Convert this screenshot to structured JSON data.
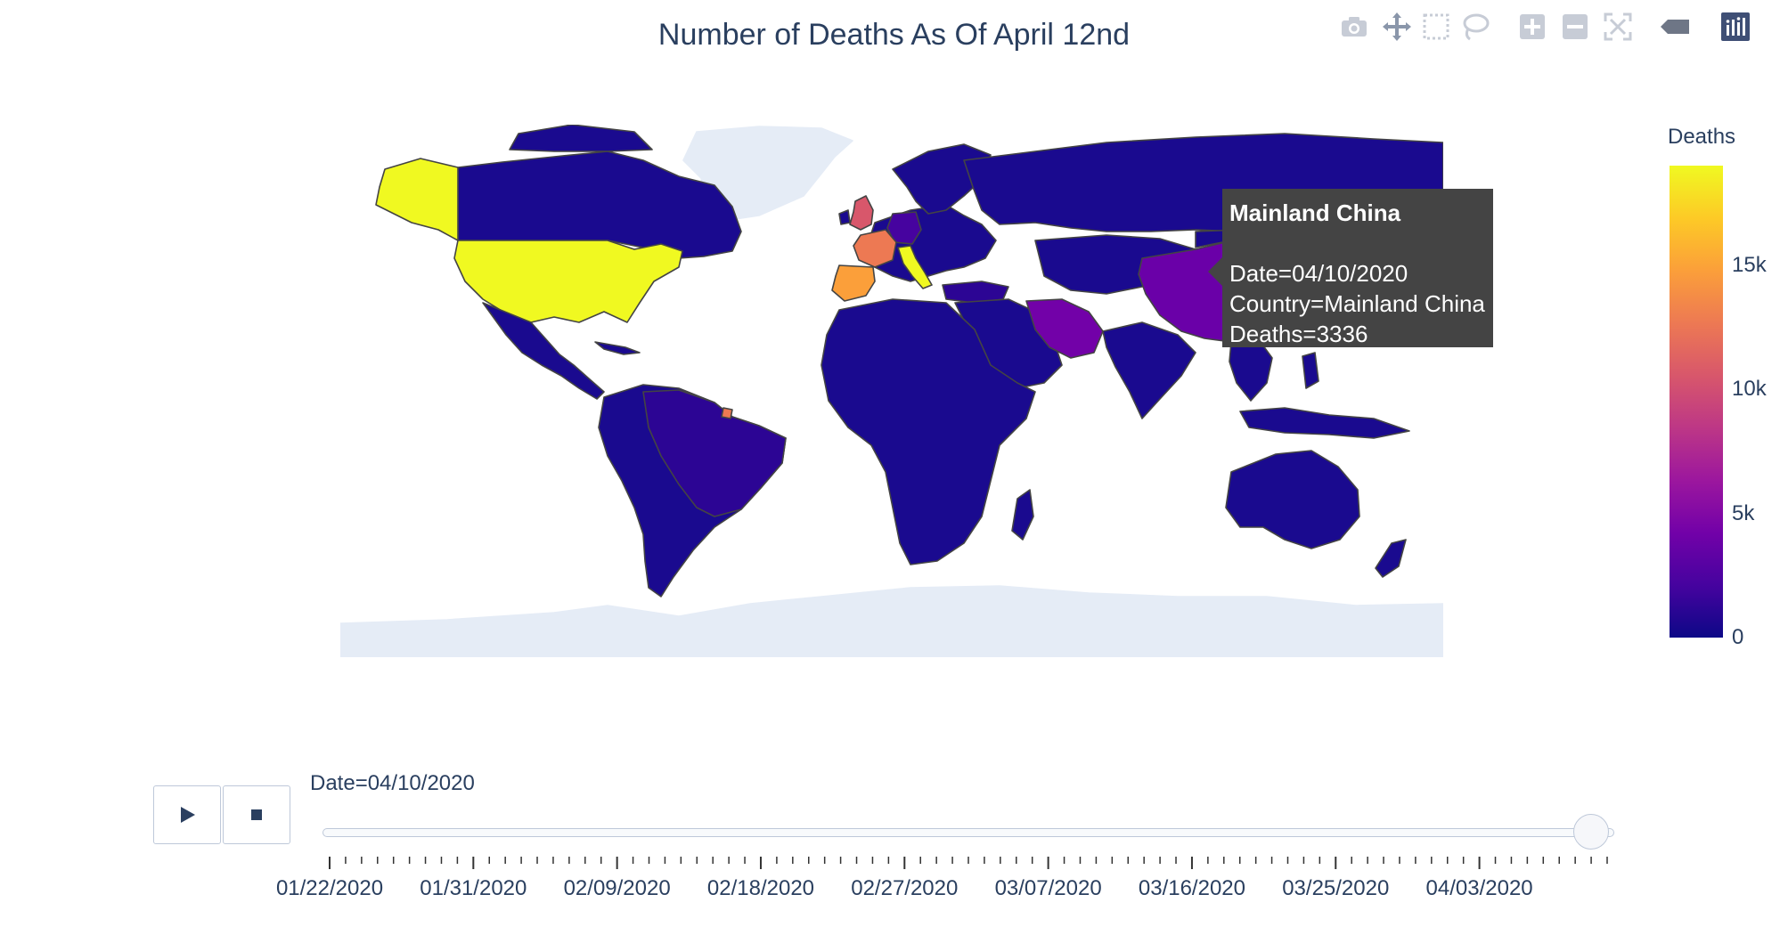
{
  "title": "Number of Deaths As Of April 12nd",
  "modebar": {
    "icons": [
      "camera-icon",
      "pan-icon",
      "box-select-icon",
      "lasso-select-icon",
      "zoom-in-icon",
      "zoom-out-icon",
      "reset-view-icon",
      "toggle-hover-icon",
      "plotly-logo-icon"
    ]
  },
  "colorbar": {
    "title": "Deaths",
    "ticks": [
      "15k",
      "10k",
      "5k",
      "0"
    ],
    "tick_values": [
      15000,
      10000,
      5000,
      0
    ],
    "range": [
      0,
      19000
    ],
    "colorscale": [
      "#0d0887",
      "#46039f",
      "#7201a8",
      "#9c179e",
      "#bd3786",
      "#d8576b",
      "#ed7953",
      "#fb9f3a",
      "#fdca26",
      "#f0f921"
    ]
  },
  "map": {
    "land_default_color": "#1a0a8f",
    "no_data_color": "#e5ecf6",
    "border_color": "#444444",
    "highlight_regions": [
      {
        "name": "Alaska",
        "color": "#f0f921"
      },
      {
        "name": "United States",
        "color": "#f0f921"
      },
      {
        "name": "United Kingdom",
        "color": "#d8576b"
      },
      {
        "name": "France",
        "color": "#ed7953"
      },
      {
        "name": "Spain",
        "color": "#fb9f3a"
      },
      {
        "name": "Italy",
        "color": "#f0f921"
      },
      {
        "name": "Germany",
        "color": "#46039f"
      },
      {
        "name": "Iran",
        "color": "#7201a8"
      },
      {
        "name": "Mainland China",
        "color": "#6a00a8"
      },
      {
        "name": "Brazil",
        "color": "#2c0594"
      }
    ]
  },
  "tooltip": {
    "name": "Mainland China",
    "date_line": "Date=04/10/2020",
    "country_line": "Country=Mainland China",
    "deaths_line": "Deaths=3336"
  },
  "slider": {
    "current_label": "Date=04/10/2020",
    "tick_labels": [
      "01/22/2020",
      "01/31/2020",
      "02/09/2020",
      "02/18/2020",
      "02/27/2020",
      "03/07/2020",
      "03/16/2020",
      "03/25/2020",
      "04/03/2020"
    ],
    "tick_count": 81,
    "value_index": 79
  },
  "buttons": {
    "play_icon": "play-icon",
    "stop_icon": "stop-icon"
  }
}
